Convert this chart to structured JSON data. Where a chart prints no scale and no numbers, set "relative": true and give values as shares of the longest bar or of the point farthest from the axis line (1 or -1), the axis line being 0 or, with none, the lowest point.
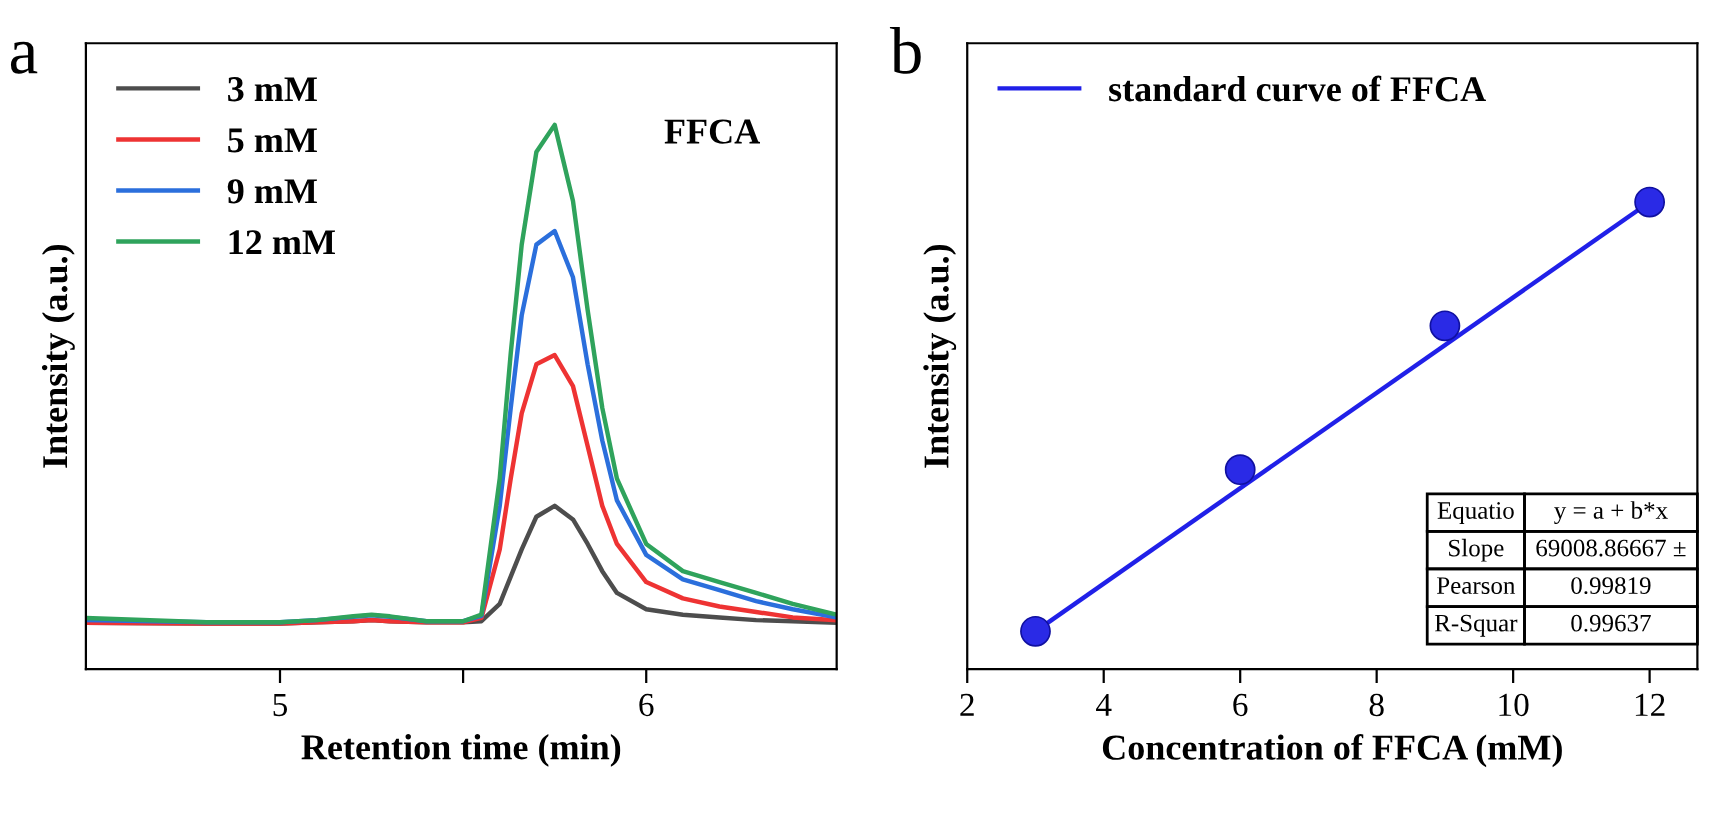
{
  "chart_data": [
    {
      "type": "line",
      "relative": true,
      "xlabel": "Retention time (min)",
      "ylabel": "Intensity (a.u.)",
      "annotations": [
        "a",
        "FFCA"
      ],
      "x": [
        4.47,
        4.8,
        5.0,
        5.1,
        5.2,
        5.25,
        5.3,
        5.4,
        5.5,
        5.55,
        5.6,
        5.63,
        5.66,
        5.7,
        5.75,
        5.8,
        5.84,
        5.88,
        5.92,
        6.0,
        6.1,
        6.2,
        6.3,
        6.4,
        6.52
      ],
      "xlim": [
        4.47,
        6.52
      ],
      "xticks": [
        5,
        {
          "value": 5.5,
          "label": null
        },
        6
      ],
      "legend": "top left",
      "grid": false,
      "tick_labels": "x",
      "series": [
        {
          "name": "3 mM",
          "color": "#4d4d4d",
          "values": [
            0.085,
            0.084,
            0.084,
            0.086,
            0.088,
            0.09,
            0.088,
            0.086,
            0.086,
            0.088,
            0.12,
            0.17,
            0.22,
            0.28,
            0.3,
            0.275,
            0.23,
            0.18,
            0.14,
            0.11,
            0.1,
            0.095,
            0.09,
            0.088,
            0.085
          ]
        },
        {
          "name": "5 mM",
          "color": "#ee3333",
          "values": [
            0.085,
            0.084,
            0.084,
            0.086,
            0.088,
            0.09,
            0.088,
            0.086,
            0.086,
            0.094,
            0.22,
            0.35,
            0.47,
            0.56,
            0.577,
            0.52,
            0.41,
            0.3,
            0.23,
            0.16,
            0.13,
            0.115,
            0.105,
            0.095,
            0.09
          ]
        },
        {
          "name": "9 mM",
          "color": "#2b6fdc",
          "values": [
            0.09,
            0.086,
            0.086,
            0.09,
            0.096,
            0.099,
            0.096,
            0.088,
            0.088,
            0.098,
            0.3,
            0.48,
            0.65,
            0.78,
            0.805,
            0.72,
            0.56,
            0.42,
            0.31,
            0.21,
            0.165,
            0.145,
            0.125,
            0.11,
            0.095
          ]
        },
        {
          "name": "12 mM",
          "color": "#2fa35c",
          "values": [
            0.094,
            0.086,
            0.086,
            0.09,
            0.097,
            0.1,
            0.097,
            0.088,
            0.088,
            0.1,
            0.35,
            0.58,
            0.78,
            0.95,
            1.0,
            0.86,
            0.66,
            0.48,
            0.35,
            0.23,
            0.18,
            0.16,
            0.14,
            0.12,
            0.1
          ]
        }
      ]
    },
    {
      "type": "scatter",
      "relative": true,
      "xlabel": "Concentration of FFCA (mM)",
      "ylabel": "Intensity (a.u.)",
      "annotations": [
        "b",
        "Equatio",
        "y = a + b*x",
        "Slope",
        "69008.86667 ±",
        "Pearson",
        "0.99819",
        "R-Squar",
        "0.99637"
      ],
      "xlim": [
        2,
        12.7
      ],
      "xticks": [
        2,
        4,
        6,
        8,
        10,
        12
      ],
      "legend": "top left",
      "grid": false,
      "tick_labels": "x",
      "series": [
        {
          "color": "#2a2ae6",
          "marker": "circle",
          "x": [
            3,
            6,
            9,
            12
          ],
          "values": [
            0.081,
            0.427,
            0.735,
            1.0
          ]
        },
        {
          "type": "line",
          "name": "standard curve of FFCA",
          "color": "#2020e8",
          "x": [
            3,
            12
          ],
          "values": [
            0.081,
            1.0
          ]
        }
      ]
    }
  ]
}
